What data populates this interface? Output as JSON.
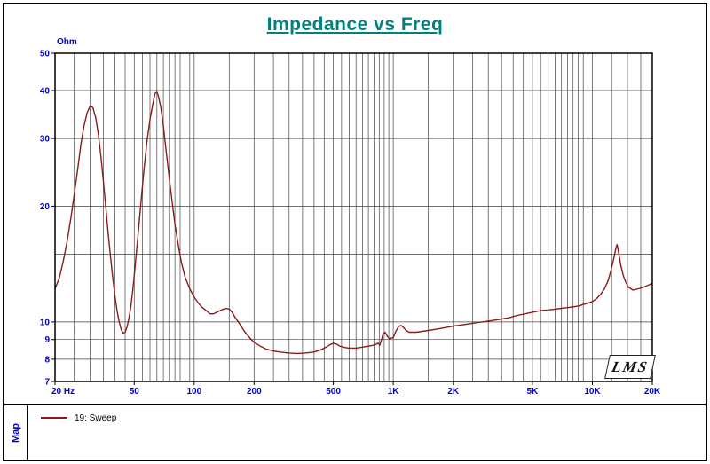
{
  "map_label": "Map",
  "logo_text": "LMS",
  "colors": {
    "title": "#008080",
    "axis_text": "#0000cc",
    "curve": "#8b1a1a",
    "grid": "#444444",
    "border": "#000000"
  },
  "legend": {
    "items": [
      {
        "label": "19: Sweep",
        "color": "#8b1a1a"
      }
    ]
  },
  "chart_data": {
    "type": "line",
    "title": "Impedance vs Freq",
    "ylabel": "Ohm",
    "xlabel": "Hz",
    "x_scale": "log",
    "y_scale": "log",
    "xlim": [
      20,
      20000
    ],
    "ylim": [
      7,
      50
    ],
    "grid": true,
    "legend_position": "bottom-left",
    "x_ticks": [
      {
        "value": 20,
        "label": "20 Hz"
      },
      {
        "value": 50,
        "label": "50"
      },
      {
        "value": 100,
        "label": "100"
      },
      {
        "value": 200,
        "label": "200"
      },
      {
        "value": 500,
        "label": "500"
      },
      {
        "value": 1000,
        "label": "1K"
      },
      {
        "value": 2000,
        "label": "2K"
      },
      {
        "value": 5000,
        "label": "5K"
      },
      {
        "value": 10000,
        "label": "10K"
      },
      {
        "value": 20000,
        "label": "20K"
      }
    ],
    "y_ticks": [
      {
        "value": 50,
        "label": "50"
      },
      {
        "value": 40,
        "label": "40"
      },
      {
        "value": 30,
        "label": "30"
      },
      {
        "value": 20,
        "label": "20"
      },
      {
        "value": 10,
        "label": "10"
      },
      {
        "value": 9,
        "label": "9"
      },
      {
        "value": 8,
        "label": "8"
      },
      {
        "value": 7,
        "label": "7"
      }
    ],
    "x_gridlines": [
      20,
      25,
      30,
      35,
      40,
      45,
      50,
      55,
      60,
      65,
      70,
      75,
      80,
      85,
      90,
      95,
      100,
      150,
      200,
      250,
      300,
      350,
      400,
      450,
      500,
      550,
      600,
      650,
      700,
      750,
      800,
      850,
      900,
      950,
      1000,
      1500,
      2000,
      2500,
      3000,
      3500,
      4000,
      4500,
      5000,
      5500,
      6000,
      6500,
      7000,
      7500,
      8000,
      8500,
      9000,
      9500,
      10000,
      12500,
      15000,
      17500,
      20000
    ],
    "y_gridlines": [
      7,
      8,
      9,
      10,
      15,
      20,
      30,
      40,
      50
    ],
    "series": [
      {
        "name": "19: Sweep",
        "color": "#8b1a1a",
        "points": [
          [
            20,
            12.2
          ],
          [
            21,
            13.0
          ],
          [
            22,
            14.4
          ],
          [
            23,
            16.2
          ],
          [
            24,
            18.6
          ],
          [
            25,
            21.5
          ],
          [
            26,
            25.0
          ],
          [
            27,
            29.0
          ],
          [
            28,
            32.5
          ],
          [
            29,
            35.0
          ],
          [
            30,
            36.4
          ],
          [
            31,
            36.1
          ],
          [
            32,
            34.0
          ],
          [
            33,
            30.8
          ],
          [
            34,
            27.0
          ],
          [
            35,
            23.2
          ],
          [
            36,
            19.8
          ],
          [
            37,
            17.0
          ],
          [
            38,
            14.8
          ],
          [
            39,
            13.0
          ],
          [
            40,
            11.7
          ],
          [
            41,
            10.7
          ],
          [
            42,
            10.0
          ],
          [
            43,
            9.55
          ],
          [
            44,
            9.35
          ],
          [
            45,
            9.4
          ],
          [
            46,
            9.7
          ],
          [
            47,
            10.2
          ],
          [
            48,
            10.9
          ],
          [
            49,
            11.9
          ],
          [
            50,
            13.2
          ],
          [
            52,
            16.4
          ],
          [
            54,
            20.4
          ],
          [
            56,
            25.0
          ],
          [
            58,
            29.6
          ],
          [
            60,
            33.6
          ],
          [
            62,
            36.9
          ],
          [
            63.5,
            39.3
          ],
          [
            65,
            39.6
          ],
          [
            66,
            38.8
          ],
          [
            68,
            36.2
          ],
          [
            70,
            32.4
          ],
          [
            72,
            28.4
          ],
          [
            75,
            23.6
          ],
          [
            78,
            20.0
          ],
          [
            80,
            18.0
          ],
          [
            83,
            16.0
          ],
          [
            86,
            14.4
          ],
          [
            90,
            13.1
          ],
          [
            95,
            12.2
          ],
          [
            100,
            11.6
          ],
          [
            105,
            11.2
          ],
          [
            110,
            10.9
          ],
          [
            115,
            10.7
          ],
          [
            120,
            10.5
          ],
          [
            125,
            10.5
          ],
          [
            130,
            10.6
          ],
          [
            135,
            10.7
          ],
          [
            140,
            10.8
          ],
          [
            145,
            10.85
          ],
          [
            150,
            10.8
          ],
          [
            155,
            10.6
          ],
          [
            160,
            10.3
          ],
          [
            170,
            9.85
          ],
          [
            180,
            9.4
          ],
          [
            190,
            9.1
          ],
          [
            200,
            8.85
          ],
          [
            215,
            8.65
          ],
          [
            230,
            8.5
          ],
          [
            250,
            8.4
          ],
          [
            270,
            8.35
          ],
          [
            300,
            8.3
          ],
          [
            330,
            8.28
          ],
          [
            360,
            8.3
          ],
          [
            400,
            8.35
          ],
          [
            430,
            8.45
          ],
          [
            460,
            8.6
          ],
          [
            480,
            8.72
          ],
          [
            500,
            8.8
          ],
          [
            520,
            8.75
          ],
          [
            540,
            8.65
          ],
          [
            570,
            8.58
          ],
          [
            600,
            8.55
          ],
          [
            650,
            8.55
          ],
          [
            700,
            8.6
          ],
          [
            750,
            8.65
          ],
          [
            800,
            8.7
          ],
          [
            840,
            8.8
          ],
          [
            855,
            8.7
          ],
          [
            870,
            8.95
          ],
          [
            890,
            9.3
          ],
          [
            910,
            9.4
          ],
          [
            930,
            9.2
          ],
          [
            955,
            9.05
          ],
          [
            1000,
            9.1
          ],
          [
            1030,
            9.45
          ],
          [
            1060,
            9.7
          ],
          [
            1090,
            9.8
          ],
          [
            1120,
            9.7
          ],
          [
            1160,
            9.5
          ],
          [
            1200,
            9.4
          ],
          [
            1300,
            9.4
          ],
          [
            1400,
            9.45
          ],
          [
            1500,
            9.5
          ],
          [
            1700,
            9.6
          ],
          [
            2000,
            9.75
          ],
          [
            2300,
            9.85
          ],
          [
            2600,
            9.95
          ],
          [
            3000,
            10.05
          ],
          [
            3400,
            10.15
          ],
          [
            3800,
            10.25
          ],
          [
            4200,
            10.4
          ],
          [
            4600,
            10.5
          ],
          [
            5000,
            10.6
          ],
          [
            5500,
            10.7
          ],
          [
            6000,
            10.75
          ],
          [
            6500,
            10.8
          ],
          [
            7000,
            10.85
          ],
          [
            7500,
            10.9
          ],
          [
            8000,
            10.95
          ],
          [
            8500,
            11.0
          ],
          [
            9000,
            11.1
          ],
          [
            9500,
            11.2
          ],
          [
            10000,
            11.3
          ],
          [
            10500,
            11.5
          ],
          [
            11000,
            11.8
          ],
          [
            11500,
            12.2
          ],
          [
            12000,
            12.8
          ],
          [
            12400,
            13.6
          ],
          [
            12800,
            14.6
          ],
          [
            13100,
            15.5
          ],
          [
            13300,
            15.9
          ],
          [
            13600,
            15.0
          ],
          [
            13900,
            14.0
          ],
          [
            14300,
            13.2
          ],
          [
            14700,
            12.7
          ],
          [
            15200,
            12.3
          ],
          [
            16000,
            12.1
          ],
          [
            17000,
            12.2
          ],
          [
            18000,
            12.3
          ],
          [
            19000,
            12.45
          ],
          [
            20000,
            12.6
          ]
        ]
      }
    ]
  }
}
